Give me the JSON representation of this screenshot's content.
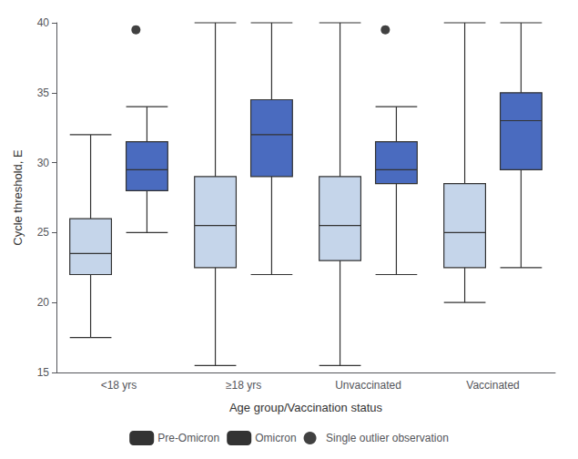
{
  "chart_data": {
    "type": "boxplot",
    "xlabel": "Age group/Vaccination status",
    "ylabel": "Cycle threshold, E",
    "categories": [
      "<18 yrs",
      "≥18 yrs",
      "Unvaccinated",
      "Vaccinated"
    ],
    "series": [
      {
        "name": "Pre-Omicron",
        "color": "#c5d5ea",
        "values": [
          [
            17.5,
            22.0,
            23.5,
            26.0,
            32.0
          ],
          [
            15.5,
            22.5,
            25.5,
            29.0,
            40.0
          ],
          [
            15.5,
            23.0,
            25.5,
            29.0,
            40.0
          ],
          [
            20.0,
            22.5,
            25.0,
            28.5,
            40.0
          ]
        ]
      },
      {
        "name": "Omicron",
        "color": "#4a6bbf",
        "values": [
          [
            25.0,
            28.0,
            29.5,
            31.5,
            34.0
          ],
          [
            22.0,
            29.0,
            32.0,
            34.5,
            40.0
          ],
          [
            22.0,
            28.5,
            29.5,
            31.5,
            34.0
          ],
          [
            22.5,
            29.5,
            33.0,
            35.0,
            40.0
          ]
        ]
      },
      {
        "name": "Single outlier observation",
        "type": "scatter",
        "color": "#111111",
        "marker": "circle",
        "values": [
          39.5,
          null,
          39.5,
          null
        ]
      }
    ],
    "ylim": [
      15,
      40
    ],
    "yticks": [
      15,
      20,
      25,
      30,
      35,
      40
    ],
    "grid": false,
    "legend": "bottom"
  }
}
